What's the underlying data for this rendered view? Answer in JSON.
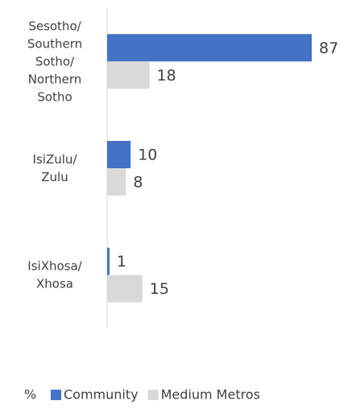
{
  "chart_data": {
    "type": "bar",
    "orientation": "horizontal",
    "categories": [
      "Sesotho/Southern Sotho/Northern Sotho",
      "IsiZulu/Zulu",
      "IsiXhosa/Xhosa"
    ],
    "series": [
      {
        "name": "Community",
        "color": "#4472c4",
        "values": [
          87,
          10,
          1
        ]
      },
      {
        "name": "Medium Metros",
        "color": "#d9d9d9",
        "values": [
          18,
          8,
          15
        ]
      }
    ],
    "xlim": [
      0,
      100
    ],
    "legend_title": "%",
    "legend": "bottom"
  }
}
